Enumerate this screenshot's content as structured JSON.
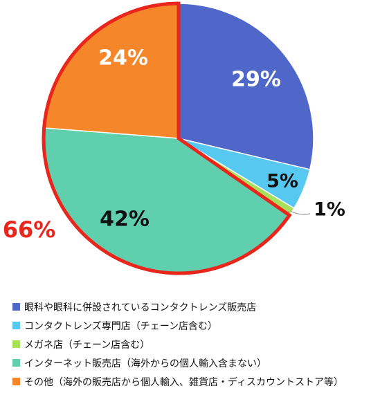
{
  "chart_data": {
    "type": "pie",
    "slices": [
      {
        "label": "眼科や眼科に併設されているコンタクトレンズ販売店",
        "value": 29,
        "value_label": "29%",
        "color": "#4f67c8",
        "label_color": "#ffffff"
      },
      {
        "label": "コンタクトレンズ専門店（チェーン店含む）",
        "value": 5,
        "value_label": "5%",
        "color": "#57c8f0",
        "label_color": "#111111"
      },
      {
        "label": "メガネ店（チェーン店含む）",
        "value": 1,
        "value_label": "1%",
        "color": "#a8e05a",
        "label_color": "#111111"
      },
      {
        "label": "インターネット販売店（海外からの個人輸入含まない）",
        "value": 42,
        "value_label": "42%",
        "color": "#5fcfae",
        "label_color": "#111111"
      },
      {
        "label": "その他（海外の販売店から個人輸入、雑貨店・ディスカウントストア等）",
        "value": 24,
        "value_label": "24%",
        "color": "#f5862a",
        "label_color": "#ffffff"
      }
    ],
    "start_angle_deg": 0,
    "direction": "clockwise",
    "highlight": {
      "label": "66%",
      "slices": [
        3,
        4
      ],
      "color": "#e8261c"
    },
    "legend_position": "bottom"
  }
}
